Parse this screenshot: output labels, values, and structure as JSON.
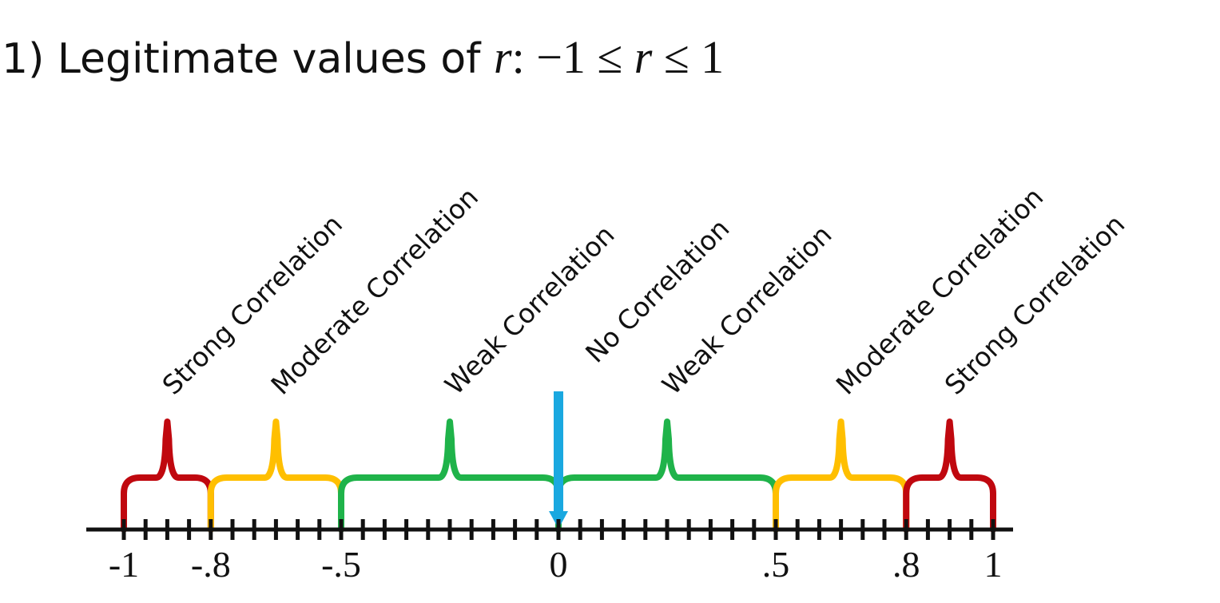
{
  "title": {
    "prefix": "1) Legitimate values of",
    "variable": "r",
    "colon": ":",
    "inequality_lower": "−1 ≤",
    "inequality_upper": "≤ 1"
  },
  "number_line": {
    "min": -1,
    "max": 1,
    "minor_tick_step": 0.1,
    "axis_color": "#111111",
    "tick_labels": [
      {
        "value": -1,
        "text": "-1"
      },
      {
        "value": -0.8,
        "text": "-.8"
      },
      {
        "value": -0.5,
        "text": "-.5"
      },
      {
        "value": 0,
        "text": "0"
      },
      {
        "value": 0.5,
        "text": ".5"
      },
      {
        "value": 0.8,
        "text": ".8"
      },
      {
        "value": 1,
        "text": "1"
      }
    ]
  },
  "zero_marker": {
    "value": 0,
    "color": "#1aa8e0",
    "icon": "arrow-down-icon"
  },
  "regions": [
    {
      "from": -1,
      "to": -0.8,
      "label": "Strong Correlation",
      "color": "#c0080f"
    },
    {
      "from": -0.8,
      "to": -0.5,
      "label": "Moderate Correlation",
      "color": "#ffbf00"
    },
    {
      "from": -0.5,
      "to": 0,
      "label": "Weak Correlation",
      "color": "#1fb34a"
    },
    {
      "from": 0,
      "to": 0,
      "label": "No Correlation",
      "color": "#1aa8e0"
    },
    {
      "from": 0,
      "to": 0.5,
      "label": "Weak Correlation",
      "color": "#1fb34a"
    },
    {
      "from": 0.5,
      "to": 0.8,
      "label": "Moderate Correlation",
      "color": "#ffbf00"
    },
    {
      "from": 0.8,
      "to": 1,
      "label": "Strong Correlation",
      "color": "#c0080f"
    }
  ]
}
